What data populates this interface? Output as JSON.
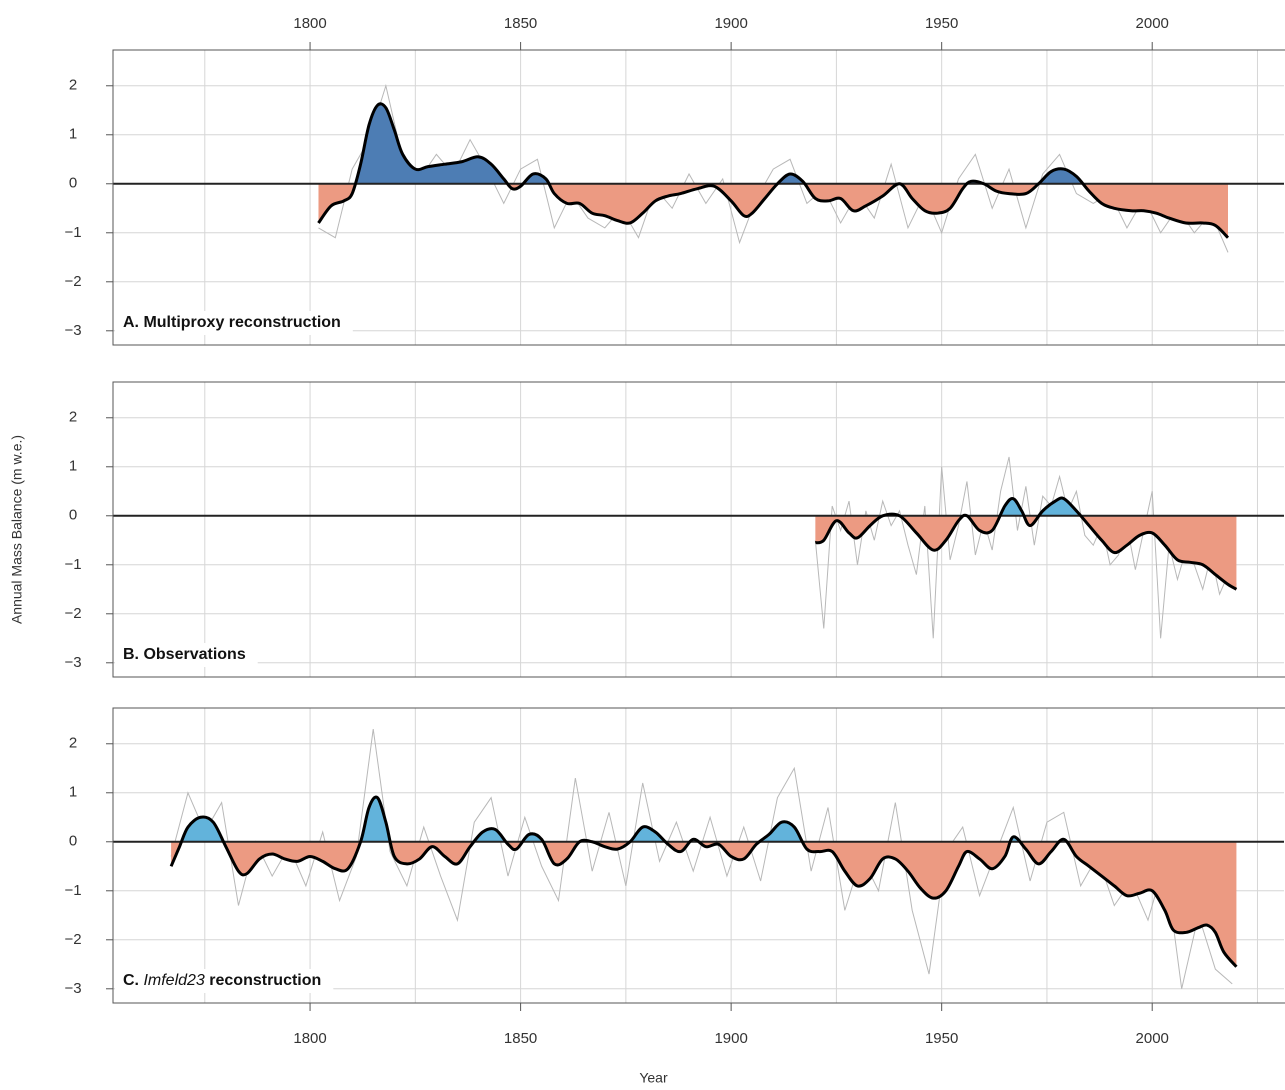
{
  "chart_data": [
    {
      "type": "area",
      "title_parts": [
        {
          "text": "A.",
          "italic": false
        },
        {
          "text": "Multiproxy reconstruction",
          "italic": false
        }
      ],
      "xlim": [
        1753.2,
        2031.3
      ],
      "ylim": [
        -3.29,
        2.73
      ],
      "xaxis": "top",
      "xticks": [
        1800,
        1850,
        1900,
        1950,
        2000
      ],
      "xgrid": [
        1775,
        1800,
        1825,
        1850,
        1875,
        1900,
        1925,
        1950,
        1975,
        2000,
        2025
      ],
      "yticks": [
        {
          "value": -3,
          "label": "−3"
        },
        {
          "value": -2,
          "label": "−2"
        },
        {
          "value": -1,
          "label": "−1"
        },
        0,
        1,
        2
      ],
      "grid": true,
      "hline": 0,
      "fill_pos": "#4d7db4",
      "fill_neg": "#ec9a82",
      "series": [
        {
          "role": "annual",
          "color": "#b8b8b8",
          "x": [
            1802,
            1806,
            1810,
            1814,
            1818,
            1822,
            1826,
            1830,
            1834,
            1838,
            1842,
            1846,
            1850,
            1854,
            1858,
            1862,
            1866,
            1870,
            1874,
            1878,
            1882,
            1886,
            1890,
            1894,
            1898,
            1902,
            1906,
            1910,
            1914,
            1918,
            1922,
            1926,
            1930,
            1934,
            1938,
            1942,
            1946,
            1950,
            1954,
            1958,
            1962,
            1966,
            1970,
            1974,
            1978,
            1982,
            1986,
            1990,
            1994,
            1998,
            2002,
            2006,
            2010,
            2014,
            2018
          ],
          "values": [
            -0.9,
            -1.1,
            0.3,
            0.9,
            2.0,
            0.5,
            0.1,
            0.6,
            0.2,
            0.9,
            0.3,
            -0.4,
            0.3,
            0.5,
            -0.9,
            -0.2,
            -0.7,
            -0.9,
            -0.5,
            -1.1,
            -0.1,
            -0.5,
            0.2,
            -0.4,
            0.1,
            -1.2,
            -0.3,
            0.3,
            0.5,
            -0.4,
            -0.1,
            -0.8,
            -0.2,
            -0.7,
            0.4,
            -0.9,
            -0.2,
            -1.0,
            0.1,
            0.6,
            -0.5,
            0.3,
            -0.9,
            0.2,
            0.6,
            -0.2,
            -0.4,
            -0.2,
            -0.9,
            -0.3,
            -1.0,
            -0.5,
            -1.0,
            -0.6,
            -1.4
          ]
        },
        {
          "role": "smooth",
          "color": "#000000",
          "x": [
            1802,
            1805,
            1808,
            1810,
            1812,
            1814,
            1816,
            1818,
            1820,
            1822,
            1825,
            1828,
            1832,
            1836,
            1840,
            1843,
            1846,
            1848,
            1850,
            1853,
            1856,
            1858,
            1861,
            1864,
            1867,
            1870,
            1873,
            1876,
            1879,
            1882,
            1885,
            1888,
            1892,
            1896,
            1900,
            1903,
            1905,
            1908,
            1911,
            1914,
            1917,
            1920,
            1923,
            1926,
            1929,
            1932,
            1936,
            1940,
            1943,
            1946,
            1949,
            1952,
            1955,
            1957,
            1960,
            1963,
            1966,
            1970,
            1973,
            1976,
            1979,
            1982,
            1985,
            1988,
            1991,
            1995,
            1998,
            2001,
            2004,
            2008,
            2012,
            2015,
            2018
          ],
          "values": [
            -0.8,
            -0.45,
            -0.35,
            -0.2,
            0.4,
            1.2,
            1.6,
            1.55,
            1.1,
            0.6,
            0.3,
            0.35,
            0.4,
            0.45,
            0.55,
            0.4,
            0.1,
            -0.1,
            -0.05,
            0.2,
            0.1,
            -0.2,
            -0.4,
            -0.4,
            -0.6,
            -0.65,
            -0.75,
            -0.8,
            -0.6,
            -0.35,
            -0.25,
            -0.2,
            -0.1,
            -0.05,
            -0.35,
            -0.65,
            -0.6,
            -0.3,
            0.0,
            0.2,
            0.05,
            -0.3,
            -0.35,
            -0.3,
            -0.55,
            -0.45,
            -0.25,
            0.0,
            -0.3,
            -0.55,
            -0.6,
            -0.5,
            -0.1,
            0.05,
            0.0,
            -0.15,
            -0.2,
            -0.2,
            0.0,
            0.25,
            0.3,
            0.15,
            -0.15,
            -0.4,
            -0.5,
            -0.55,
            -0.55,
            -0.6,
            -0.7,
            -0.8,
            -0.8,
            -0.85,
            -1.1
          ]
        }
      ]
    },
    {
      "type": "area",
      "title_parts": [
        {
          "text": "B.",
          "italic": false
        },
        {
          "text": "Observations",
          "italic": false
        }
      ],
      "ylabel": "Annual Mass Balance (m w.e.)",
      "xlim": [
        1753.2,
        2031.3
      ],
      "ylim": [
        -3.29,
        2.73
      ],
      "xgrid": [
        1775,
        1800,
        1825,
        1850,
        1875,
        1900,
        1925,
        1950,
        1975,
        2000,
        2025
      ],
      "yticks": [
        {
          "value": -3,
          "label": "−3"
        },
        {
          "value": -2,
          "label": "−2"
        },
        {
          "value": -1,
          "label": "−1"
        },
        0,
        1,
        2
      ],
      "grid": true,
      "hline": 0,
      "fill_pos": "#62b3db",
      "fill_neg": "#ec9a82",
      "series": [
        {
          "role": "annual",
          "color": "#b8b8b8",
          "x": [
            1920,
            1922,
            1924,
            1926,
            1928,
            1930,
            1932,
            1934,
            1936,
            1938,
            1940,
            1942,
            1944,
            1946,
            1948,
            1950,
            1952,
            1954,
            1956,
            1958,
            1960,
            1962,
            1964,
            1966,
            1968,
            1970,
            1972,
            1974,
            1976,
            1978,
            1980,
            1982,
            1984,
            1986,
            1988,
            1990,
            1992,
            1994,
            1996,
            1998,
            2000,
            2002,
            2004,
            2006,
            2008,
            2010,
            2012,
            2014,
            2016,
            2018,
            2020
          ],
          "values": [
            -0.5,
            -2.3,
            0.2,
            -0.3,
            0.3,
            -1.0,
            0.1,
            -0.5,
            0.3,
            -0.2,
            0.1,
            -0.6,
            -1.2,
            0.2,
            -2.5,
            1.0,
            -0.9,
            -0.2,
            0.7,
            -0.8,
            -0.1,
            -0.7,
            0.5,
            1.2,
            -0.3,
            0.6,
            -0.6,
            0.4,
            0.2,
            0.8,
            0.1,
            0.5,
            -0.4,
            -0.6,
            -0.2,
            -1.0,
            -0.8,
            -0.2,
            -1.1,
            -0.3,
            0.5,
            -2.5,
            -0.6,
            -1.3,
            -0.7,
            -1.0,
            -1.5,
            -0.8,
            -1.6,
            -1.2,
            -1.4
          ]
        },
        {
          "role": "smooth",
          "color": "#000000",
          "x": [
            1920,
            1922,
            1925,
            1928,
            1930,
            1933,
            1936,
            1940,
            1944,
            1948,
            1951,
            1954,
            1956,
            1959,
            1962,
            1965,
            1967,
            1969,
            1971,
            1974,
            1977,
            1979,
            1982,
            1985,
            1988,
            1991,
            1994,
            1997,
            2000,
            2003,
            2006,
            2009,
            2012,
            2015,
            2018,
            2020
          ],
          "values": [
            -0.55,
            -0.5,
            -0.1,
            -0.35,
            -0.45,
            -0.2,
            0.0,
            0.0,
            -0.35,
            -0.7,
            -0.5,
            -0.1,
            0.0,
            -0.3,
            -0.3,
            0.2,
            0.35,
            0.1,
            -0.2,
            0.1,
            0.3,
            0.35,
            0.1,
            -0.2,
            -0.5,
            -0.75,
            -0.6,
            -0.4,
            -0.35,
            -0.6,
            -0.9,
            -0.95,
            -1.0,
            -1.2,
            -1.4,
            -1.5
          ]
        }
      ]
    },
    {
      "type": "area",
      "title_parts": [
        {
          "text": "C.",
          "italic": false
        },
        {
          "text": "Imfeld23",
          "italic": true
        },
        {
          "text": "reconstruction",
          "italic": false
        }
      ],
      "xlabel": "Year",
      "xlim": [
        1753.2,
        2031.3
      ],
      "ylim": [
        -3.29,
        2.73
      ],
      "xaxis": "bottom",
      "xticks": [
        1800,
        1850,
        1900,
        1950,
        2000
      ],
      "xgrid": [
        1775,
        1800,
        1825,
        1850,
        1875,
        1900,
        1925,
        1950,
        1975,
        2000,
        2025
      ],
      "yticks": [
        {
          "value": -3,
          "label": "−3"
        },
        {
          "value": -2,
          "label": "−2"
        },
        {
          "value": -1,
          "label": "−1"
        },
        0,
        1,
        2
      ],
      "grid": true,
      "hline": 0,
      "fill_pos": "#62b3db",
      "fill_neg": "#ec9a82",
      "series": [
        {
          "role": "annual",
          "color": "#b8b8b8",
          "x": [
            1767,
            1771,
            1775,
            1779,
            1783,
            1787,
            1791,
            1795,
            1799,
            1803,
            1807,
            1811,
            1815,
            1819,
            1823,
            1827,
            1831,
            1835,
            1839,
            1843,
            1847,
            1851,
            1855,
            1859,
            1863,
            1867,
            1871,
            1875,
            1879,
            1883,
            1887,
            1891,
            1895,
            1899,
            1903,
            1907,
            1911,
            1915,
            1919,
            1923,
            1927,
            1931,
            1935,
            1939,
            1943,
            1947,
            1951,
            1955,
            1959,
            1963,
            1967,
            1971,
            1975,
            1979,
            1983,
            1987,
            1991,
            1995,
            1999,
            2003,
            2007,
            2011,
            2015,
            2019
          ],
          "values": [
            -0.3,
            1.0,
            0.2,
            0.8,
            -1.3,
            0.0,
            -0.7,
            -0.1,
            -0.9,
            0.2,
            -1.2,
            -0.3,
            2.3,
            -0.2,
            -0.9,
            0.3,
            -0.7,
            -1.6,
            0.4,
            0.9,
            -0.7,
            0.5,
            -0.5,
            -1.2,
            1.3,
            -0.6,
            0.6,
            -0.9,
            1.2,
            -0.4,
            0.4,
            -0.6,
            0.5,
            -0.7,
            0.3,
            -0.8,
            0.9,
            1.5,
            -0.6,
            0.7,
            -1.4,
            -0.3,
            -1.0,
            0.8,
            -1.4,
            -2.7,
            -0.2,
            0.3,
            -1.1,
            -0.2,
            0.7,
            -0.8,
            0.4,
            0.6,
            -0.9,
            -0.3,
            -1.3,
            -0.8,
            -1.6,
            -0.4,
            -3.0,
            -1.5,
            -2.6,
            -2.9
          ]
        },
        {
          "role": "smooth",
          "color": "#000000",
          "x": [
            1767,
            1769,
            1771,
            1774,
            1777,
            1780,
            1783,
            1785,
            1788,
            1791,
            1794,
            1797,
            1800,
            1803,
            1806,
            1809,
            1812,
            1814,
            1816,
            1818,
            1820,
            1823,
            1826,
            1829,
            1832,
            1835,
            1838,
            1841,
            1844,
            1847,
            1849,
            1852,
            1855,
            1858,
            1861,
            1864,
            1867,
            1870,
            1873,
            1876,
            1879,
            1882,
            1885,
            1888,
            1891,
            1894,
            1897,
            1900,
            1903,
            1906,
            1909,
            1912,
            1915,
            1918,
            1921,
            1924,
            1927,
            1930,
            1933,
            1936,
            1939,
            1942,
            1945,
            1948,
            1951,
            1954,
            1956,
            1959,
            1962,
            1965,
            1967,
            1970,
            1973,
            1976,
            1979,
            1982,
            1985,
            1988,
            1991,
            1994,
            1997,
            2000,
            2003,
            2005,
            2008,
            2011,
            2013,
            2015,
            2017,
            2020
          ],
          "values": [
            -0.5,
            -0.1,
            0.3,
            0.5,
            0.4,
            -0.1,
            -0.6,
            -0.65,
            -0.35,
            -0.25,
            -0.35,
            -0.4,
            -0.3,
            -0.4,
            -0.55,
            -0.55,
            0.0,
            0.7,
            0.9,
            0.4,
            -0.3,
            -0.45,
            -0.35,
            -0.1,
            -0.3,
            -0.45,
            -0.1,
            0.2,
            0.25,
            -0.05,
            -0.15,
            0.15,
            0.05,
            -0.45,
            -0.35,
            0.0,
            0.0,
            -0.1,
            -0.15,
            0.0,
            0.3,
            0.2,
            -0.05,
            -0.2,
            0.05,
            -0.1,
            -0.05,
            -0.3,
            -0.35,
            -0.05,
            0.15,
            0.4,
            0.3,
            -0.15,
            -0.2,
            -0.2,
            -0.6,
            -0.9,
            -0.75,
            -0.35,
            -0.35,
            -0.6,
            -0.95,
            -1.15,
            -1.0,
            -0.5,
            -0.2,
            -0.35,
            -0.55,
            -0.3,
            0.1,
            -0.15,
            -0.45,
            -0.2,
            0.05,
            -0.3,
            -0.5,
            -0.7,
            -0.9,
            -1.1,
            -1.05,
            -1.0,
            -1.4,
            -1.8,
            -1.85,
            -1.75,
            -1.7,
            -1.85,
            -2.25,
            -2.55
          ]
        }
      ]
    }
  ]
}
